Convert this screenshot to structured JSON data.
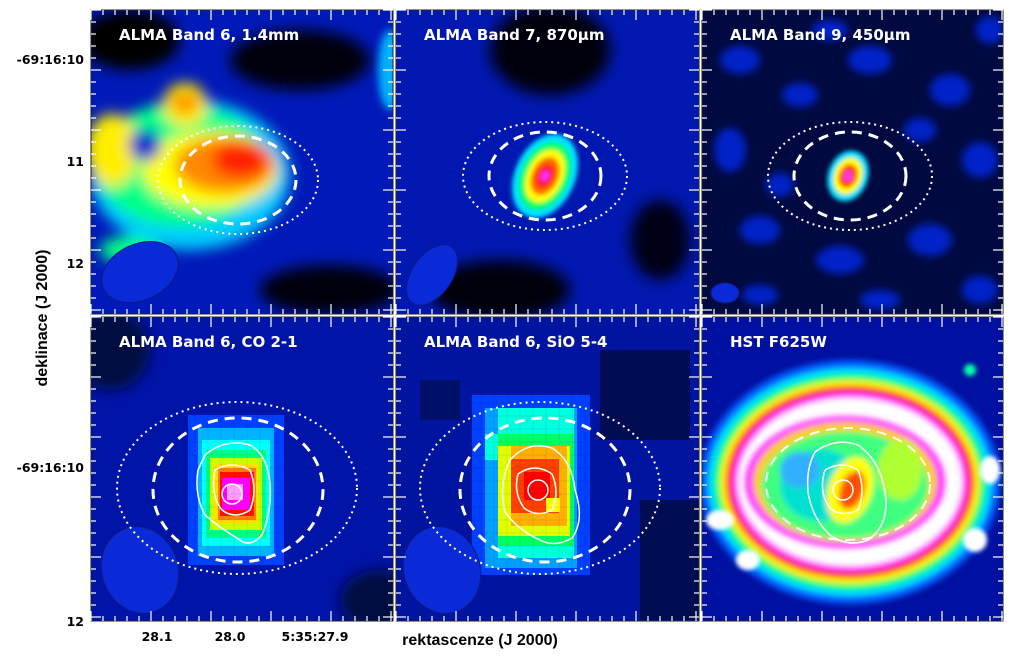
{
  "figure": {
    "x_axis_title": "rektascenze (J 2000)",
    "y_axis_title": "deklinace (J 2000)",
    "top_row_dec_ticks": [
      "-69:16:10",
      "11",
      "12"
    ],
    "bottom_row_dec_ticks": [
      "-69:16:10",
      "12"
    ],
    "ra_ticks": [
      "28.1",
      "28.0",
      "5:35:27.9"
    ],
    "panels": [
      {
        "label": "ALMA Band 6, 1.4mm",
        "colormap": "rainbow",
        "beam": "large"
      },
      {
        "label": "ALMA Band 7, 870μm",
        "colormap": "rainbow",
        "beam": "medium"
      },
      {
        "label": "ALMA Band 9, 450μm",
        "colormap": "rainbow",
        "beam": "small"
      },
      {
        "label": "ALMA Band 6, CO 2-1",
        "colormap": "rainbow",
        "beam": "large"
      },
      {
        "label": "ALMA Band 6, SiO 5-4",
        "colormap": "rainbow",
        "beam": "large"
      },
      {
        "label": "HST F625W",
        "colormap": "rainbow",
        "beam": "none"
      }
    ]
  }
}
